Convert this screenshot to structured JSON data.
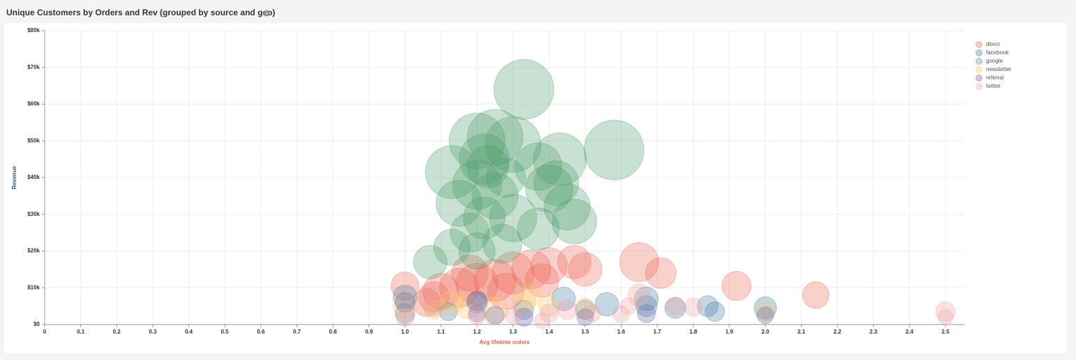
{
  "chart_data": {
    "type": "bubble",
    "title": "Unique Customers by Orders and Rev (grouped by source and geo)",
    "x_label": "Avg lifetime orders",
    "y_label": "Revenue",
    "xlim": [
      0,
      2.55
    ],
    "ylim": [
      0,
      80000
    ],
    "xticks": [
      0,
      0.1,
      0.2,
      0.3,
      0.4,
      0.5,
      0.6,
      0.7,
      0.8,
      0.9,
      {
        "value": 1,
        "label": "1.0"
      },
      1.1,
      1.2,
      1.3,
      1.4,
      1.5,
      1.6,
      1.7,
      1.8,
      1.9,
      {
        "value": 2,
        "label": "2.0"
      },
      2.1,
      2.2,
      2.3,
      2.4,
      2.5
    ],
    "yticks": [
      {
        "value": 0,
        "label": "$0"
      },
      {
        "value": 10000,
        "label": "$10k"
      },
      {
        "value": 20000,
        "label": "$20k"
      },
      {
        "value": 30000,
        "label": "$30k"
      },
      {
        "value": 40000,
        "label": "$40k"
      },
      {
        "value": 50000,
        "label": "$50k"
      },
      {
        "value": 60000,
        "label": "$60k"
      },
      {
        "value": 70000,
        "label": "$70k"
      },
      {
        "value": 80000,
        "label": "$80k"
      }
    ],
    "grid": true,
    "legend": "top-right",
    "series": [
      {
        "name": "direct",
        "color": "#ee6352",
        "x": [
          1.0,
          1.65,
          1.71,
          1.92,
          2.14,
          1.5,
          1.47,
          1.35,
          1.3,
          1.25,
          1.2,
          1.15,
          1.1,
          1.08,
          1.4,
          1.38,
          1.18,
          1.28,
          1.06
        ],
        "y": [
          10500,
          17000,
          14000,
          10500,
          8000,
          15000,
          17000,
          15000,
          14000,
          12000,
          11000,
          10000,
          9000,
          7500,
          16000,
          12000,
          14000,
          9000,
          6000
        ],
        "size": [
          400,
          784,
          484,
          441,
          361,
          576,
          576,
          784,
          900,
          900,
          900,
          784,
          676,
          484,
          676,
          576,
          676,
          676,
          400
        ]
      },
      {
        "name": "facebook",
        "color": "#3f7a9e",
        "x": [
          1.0,
          1.2,
          1.44,
          1.56,
          1.67,
          1.67,
          1.75,
          1.84,
          1.86,
          2.0,
          1.5,
          1.12,
          1.33,
          1.0
        ],
        "y": [
          7500,
          6000,
          7000,
          5500,
          7000,
          5000,
          4500,
          5000,
          3500,
          4500,
          4000,
          3500,
          4000,
          3000
        ],
        "size": [
          289,
          225,
          289,
          289,
          289,
          225,
          225,
          225,
          196,
          256,
          196,
          169,
          196,
          196
        ]
      },
      {
        "name": "google",
        "color": "#4b9a6a",
        "x": [
          1.33,
          1.58,
          1.2,
          1.25,
          1.3,
          1.43,
          1.13,
          1.22,
          1.37,
          1.2,
          1.4,
          1.15,
          1.25,
          1.42,
          1.45,
          1.47,
          1.3,
          1.22,
          1.18,
          1.37,
          1.13,
          1.07,
          1.27,
          1.2,
          1.23,
          1.28
        ],
        "y": [
          64000,
          47500,
          50000,
          51000,
          49000,
          45000,
          41500,
          45000,
          43000,
          38000,
          37000,
          33000,
          35000,
          38500,
          32000,
          28000,
          29000,
          29000,
          25000,
          26000,
          21000,
          17000,
          22000,
          20000,
          43000,
          40000
        ],
        "size": [
          1849,
          1849,
          1600,
          1600,
          1600,
          1444,
          1444,
          1296,
          1156,
          1225,
          1156,
          1089,
          1089,
          1024,
          1089,
          1024,
          1156,
          900,
          784,
          900,
          676,
          576,
          784,
          676,
          900,
          784
        ]
      },
      {
        "name": "newsletter",
        "color": "#f9c56a",
        "x": [
          1.0,
          1.13,
          1.17,
          1.25,
          1.33,
          1.35,
          1.4,
          1.5,
          2.0,
          1.08
        ],
        "y": [
          5000,
          6000,
          5000,
          4000,
          6000,
          8000,
          5000,
          4500,
          3500,
          4000
        ],
        "size": [
          289,
          289,
          324,
          361,
          289,
          256,
          225,
          196,
          196,
          196
        ]
      },
      {
        "name": "referral",
        "color": "#6a5fa8",
        "x": [
          1.0,
          1.2,
          1.25,
          1.33,
          1.5,
          1.67,
          2.0,
          1.2
        ],
        "y": [
          6000,
          6500,
          2500,
          2000,
          2000,
          3000,
          2500,
          3000
        ],
        "size": [
          196,
          196,
          169,
          169,
          144,
          169,
          144,
          144
        ]
      },
      {
        "name": "twitter",
        "color": "#f0a0a0",
        "x": [
          2.5,
          2.5,
          1.8,
          1.75,
          1.62,
          1.6,
          1.08,
          1.0,
          1.2,
          1.4,
          1.3,
          1.45,
          1.52,
          1.38,
          1.65
        ],
        "y": [
          3500,
          2000,
          4800,
          5000,
          5000,
          2800,
          5000,
          2000,
          2500,
          3000,
          2500,
          4000,
          3000,
          1000,
          8000
        ],
        "size": [
          196,
          121,
          169,
          169,
          144,
          144,
          225,
          169,
          169,
          169,
          144,
          196,
          144,
          121,
          256
        ]
      }
    ]
  }
}
